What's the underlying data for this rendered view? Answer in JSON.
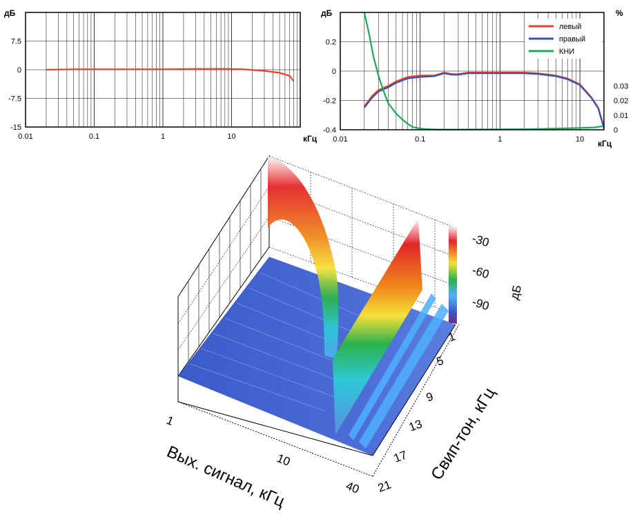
{
  "chart_data": [
    {
      "type": "line",
      "x_scale": "log",
      "xlim": [
        0.01,
        100
      ],
      "ylim": [
        -15,
        15
      ],
      "x_ticks": [
        "0.01",
        "0.1",
        "1",
        "10"
      ],
      "x_unit": "кГц",
      "y_unit": "дБ",
      "y_ticks": [
        "7.5",
        "0",
        "-7.5",
        "-15"
      ],
      "y_tick_values": [
        7.5,
        0,
        -7.5,
        -15
      ],
      "grid": true,
      "series": [
        {
          "color": "#e8402a",
          "x": [
            0.02,
            0.05,
            0.1,
            0.3,
            1,
            3,
            8,
            15,
            30,
            50,
            70,
            80
          ],
          "y": [
            0,
            0.1,
            0.1,
            0.1,
            0.1,
            0.2,
            0.2,
            0.1,
            -0.3,
            -0.8,
            -1.6,
            -3
          ]
        }
      ]
    },
    {
      "type": "line",
      "x_scale": "log",
      "xlim": [
        0.01,
        20
      ],
      "ylim": [
        -0.4,
        0.4
      ],
      "y2lim": [
        0,
        0.08
      ],
      "x_ticks": [
        "0.01",
        "0.1",
        "1",
        "10"
      ],
      "x_unit": "кГц",
      "y_unit": "дБ",
      "y2_unit": "%",
      "y_ticks": [
        "0.2",
        "0",
        "-0.2",
        "-0.4"
      ],
      "y_tick_values": [
        0.2,
        0,
        -0.2,
        -0.4
      ],
      "y2_ticks": [
        "0.03",
        "0.02",
        "0.01",
        "0"
      ],
      "y2_tick_values": [
        0.03,
        0.02,
        0.01,
        0
      ],
      "legend_position": "top-right",
      "grid": true,
      "series": [
        {
          "name": "левый",
          "axis": "left",
          "color": "#e8402a",
          "x": [
            0.02,
            0.025,
            0.03,
            0.04,
            0.05,
            0.07,
            0.1,
            0.15,
            0.2,
            0.25,
            0.3,
            0.4,
            0.5,
            0.7,
            1,
            2,
            3,
            5,
            7,
            10,
            14,
            17,
            20
          ],
          "y": [
            -0.24,
            -0.17,
            -0.13,
            -0.1,
            -0.07,
            -0.04,
            -0.03,
            -0.03,
            -0.01,
            -0.02,
            -0.02,
            -0.01,
            -0.01,
            -0.01,
            -0.01,
            -0.01,
            -0.015,
            -0.03,
            -0.05,
            -0.09,
            -0.18,
            -0.25,
            -0.38
          ]
        },
        {
          "name": "правый",
          "axis": "left",
          "color": "#3a4fb0",
          "x": [
            0.02,
            0.025,
            0.03,
            0.04,
            0.05,
            0.07,
            0.1,
            0.15,
            0.2,
            0.25,
            0.3,
            0.4,
            0.5,
            0.7,
            1,
            2,
            3,
            5,
            7,
            10,
            14,
            17,
            20
          ],
          "y": [
            -0.25,
            -0.18,
            -0.14,
            -0.11,
            -0.08,
            -0.05,
            -0.04,
            -0.035,
            -0.015,
            -0.025,
            -0.025,
            -0.015,
            -0.015,
            -0.015,
            -0.015,
            -0.015,
            -0.02,
            -0.035,
            -0.055,
            -0.095,
            -0.185,
            -0.255,
            -0.39
          ]
        },
        {
          "name": "КНИ",
          "axis": "right",
          "color": "#1aa85a",
          "x": [
            0.02,
            0.023,
            0.026,
            0.03,
            0.035,
            0.04,
            0.05,
            0.06,
            0.07,
            0.08,
            0.1,
            0.15,
            0.3,
            1,
            3,
            10,
            15,
            20
          ],
          "y": [
            0.08,
            0.065,
            0.05,
            0.037,
            0.026,
            0.018,
            0.011,
            0.007,
            0.004,
            0.002,
            0.0008,
            0.0002,
            0.0002,
            0.0003,
            0.0005,
            0.0012,
            0.0016,
            0.0025
          ]
        }
      ]
    },
    {
      "type": "surface3d",
      "x_label": "Вых. сигнал, кГц",
      "x_ticks": [
        "1",
        "10",
        "40"
      ],
      "y_label": "Свип-тон, кГц",
      "y_ticks": [
        "1",
        "5",
        "9",
        "13",
        "17",
        "21"
      ],
      "z_unit": "дБ",
      "z_ticks": [
        "-30",
        "-60",
        "-90"
      ],
      "colormap": [
        "#6a2d8a",
        "#3d5bc8",
        "#4fb0ff",
        "#2ec8d8",
        "#2bb24c",
        "#f6e03a",
        "#f08a1c",
        "#e3262a",
        "#ffffff"
      ]
    }
  ]
}
